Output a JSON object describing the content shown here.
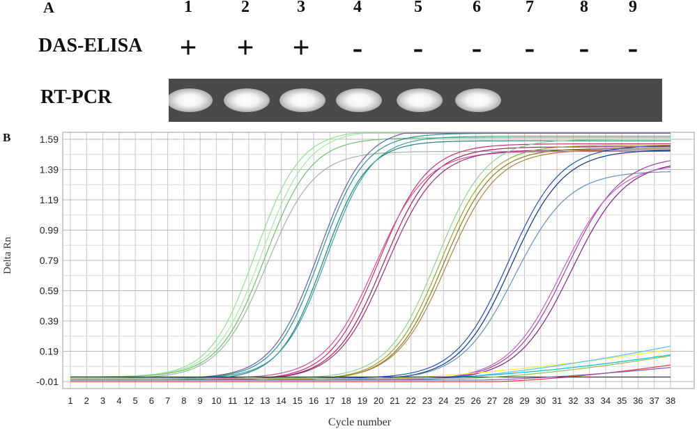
{
  "panel_a": {
    "letter": "A",
    "lanes": [
      "1",
      "2",
      "3",
      "4",
      "5",
      "6",
      "7",
      "8",
      "9"
    ],
    "elisa_label": "DAS-ELISA",
    "elisa_results": [
      "+",
      "+",
      "+",
      "-",
      "-",
      "-",
      "-",
      "-",
      "-"
    ],
    "pcr_label": "RT-PCR",
    "pcr_band_present": [
      true,
      true,
      true,
      true,
      true,
      true,
      false,
      false,
      false
    ]
  },
  "panel_b": {
    "letter": "B"
  },
  "chart_data": {
    "type": "line",
    "title": "",
    "xlabel": "Cycle number",
    "ylabel": "Delta Rn",
    "x": [
      1,
      2,
      3,
      4,
      5,
      6,
      7,
      8,
      9,
      10,
      11,
      12,
      13,
      14,
      15,
      16,
      17,
      18,
      19,
      20,
      21,
      22,
      23,
      24,
      25,
      26,
      27,
      28,
      29,
      30,
      31,
      32,
      33,
      34,
      35,
      36,
      37,
      38
    ],
    "y_ticks": [
      "-0.01",
      "0.19",
      "0.39",
      "0.59",
      "0.79",
      "0.99",
      "1.19",
      "1.39",
      "1.59"
    ],
    "ylim": [
      -0.01,
      1.63
    ],
    "grid": true,
    "series": [
      {
        "color": "#8fe08f",
        "ct": 12.4,
        "plateau": 1.63,
        "baseline": 0.02,
        "k": 0.72
      },
      {
        "color": "#a8e6a8",
        "ct": 12.8,
        "plateau": 1.63,
        "baseline": 0.02,
        "k": 0.7
      },
      {
        "color": "#9fb59f",
        "ct": 13.1,
        "plateau": 1.5,
        "baseline": 0.01,
        "k": 0.68
      },
      {
        "color": "#6fbf6f",
        "ct": 13.0,
        "plateau": 1.58,
        "baseline": 0.02,
        "k": 0.7
      },
      {
        "color": "#2f8f8f",
        "ct": 16.4,
        "plateau": 1.62,
        "baseline": 0.01,
        "k": 0.72
      },
      {
        "color": "#1f7f7f",
        "ct": 16.6,
        "plateau": 1.58,
        "baseline": 0.0,
        "k": 0.74
      },
      {
        "color": "#6060b0",
        "ct": 16.3,
        "plateau": 1.66,
        "baseline": 0.01,
        "k": 0.7
      },
      {
        "color": "#3aa0a0",
        "ct": 16.8,
        "plateau": 1.6,
        "baseline": 0.01,
        "k": 0.72
      },
      {
        "color": "#c03070",
        "ct": 20.0,
        "plateau": 1.56,
        "baseline": 0.0,
        "k": 0.66
      },
      {
        "color": "#a02060",
        "ct": 20.3,
        "plateau": 1.54,
        "baseline": 0.0,
        "k": 0.66
      },
      {
        "color": "#d050a0",
        "ct": 19.8,
        "plateau": 1.5,
        "baseline": 0.01,
        "k": 0.64
      },
      {
        "color": "#903080",
        "ct": 20.5,
        "plateau": 1.52,
        "baseline": 0.0,
        "k": 0.65
      },
      {
        "color": "#a0a030",
        "ct": 23.8,
        "plateau": 1.55,
        "baseline": 0.0,
        "k": 0.66
      },
      {
        "color": "#808020",
        "ct": 24.0,
        "plateau": 1.53,
        "baseline": 0.0,
        "k": 0.66
      },
      {
        "color": "#90d090",
        "ct": 23.6,
        "plateau": 1.58,
        "baseline": 0.01,
        "k": 0.66
      },
      {
        "color": "#b08040",
        "ct": 24.2,
        "plateau": 1.52,
        "baseline": 0.0,
        "k": 0.64
      },
      {
        "color": "#2050b0",
        "ct": 28.0,
        "plateau": 1.54,
        "baseline": 0.01,
        "k": 0.62
      },
      {
        "color": "#103080",
        "ct": 28.2,
        "plateau": 1.52,
        "baseline": 0.0,
        "k": 0.62
      },
      {
        "color": "#6090c0",
        "ct": 28.4,
        "plateau": 1.38,
        "baseline": 0.0,
        "k": 0.6
      },
      {
        "color": "#a040a0",
        "ct": 31.6,
        "plateau": 1.48,
        "baseline": 0.0,
        "k": 0.6
      },
      {
        "color": "#802080",
        "ct": 31.9,
        "plateau": 1.45,
        "baseline": 0.0,
        "k": 0.6
      },
      {
        "color": "#c060c0",
        "ct": 31.3,
        "plateau": 1.43,
        "baseline": 0.0,
        "k": 0.6
      },
      {
        "color": "#ffeb3b",
        "ct": 60,
        "plateau": 0,
        "baseline": 0.01,
        "k": 0.5,
        "drift": 0.0025,
        "drift_start": 20
      },
      {
        "color": "#4fc3f7",
        "ct": 60,
        "plateau": 0,
        "baseline": 0.0,
        "k": 0.5,
        "drift": 0.0035,
        "drift_start": 22
      },
      {
        "color": "#e53935",
        "ct": 60,
        "plateau": 0,
        "baseline": -0.01,
        "k": 0.5,
        "drift": 0.003,
        "drift_start": 27
      },
      {
        "color": "#00bcd4",
        "ct": 60,
        "plateau": 0,
        "baseline": 0.02,
        "k": 0.5,
        "drift": 0.0028,
        "drift_start": 24
      },
      {
        "color": "#333333",
        "ct": 60,
        "plateau": 0,
        "baseline": 0.02,
        "k": 0.5,
        "drift": 0.0,
        "drift_start": 0
      },
      {
        "color": "#7e57c2",
        "ct": 60,
        "plateau": 0,
        "baseline": 0.0,
        "k": 0.5,
        "drift": 0.002,
        "drift_start": 26
      },
      {
        "color": "#8bc34a",
        "ct": 60,
        "plateau": 0,
        "baseline": 0.01,
        "k": 0.5,
        "drift": 0.0032,
        "drift_start": 25
      }
    ]
  }
}
